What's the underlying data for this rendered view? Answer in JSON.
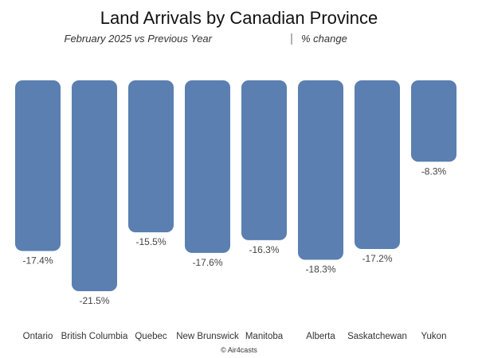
{
  "chart_data": {
    "type": "bar",
    "title": "Land Arrivals by Canadian Province",
    "subtitle": "February 2025 vs Previous Year",
    "subtitle_unit": "% change",
    "credit": "© Air4casts",
    "categories": [
      "Ontario",
      "British Columbia",
      "Quebec",
      "New Brunswick",
      "Manitoba",
      "Alberta",
      "Saskatchewan",
      "Yukon"
    ],
    "values": [
      -17.4,
      -21.5,
      -15.5,
      -17.6,
      -16.3,
      -18.3,
      -17.2,
      -8.3
    ],
    "value_labels": [
      "-17.4%",
      "-21.5%",
      "-15.5%",
      "-17.6%",
      "-16.3%",
      "-18.3%",
      "-17.2%",
      "-8.3%"
    ],
    "ylim": [
      -21.5,
      0
    ],
    "grid": false,
    "legend": "none",
    "bar_color": "#5a7fb0"
  }
}
